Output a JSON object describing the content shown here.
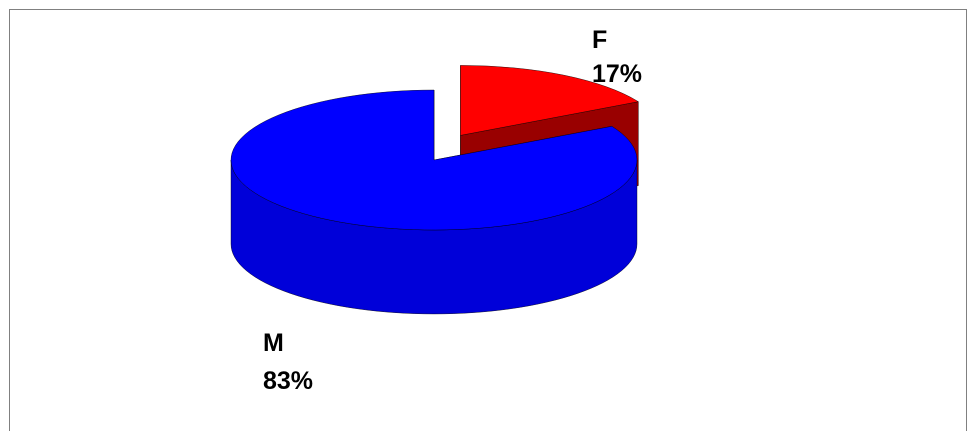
{
  "chart_data": {
    "type": "pie",
    "style": "3d-exploded",
    "categories": [
      "F",
      "M"
    ],
    "values": [
      17,
      83
    ],
    "percent_labels": [
      "17%",
      "83%"
    ],
    "colors": [
      "#ff0000",
      "#0000ff"
    ],
    "legend": "none"
  }
}
